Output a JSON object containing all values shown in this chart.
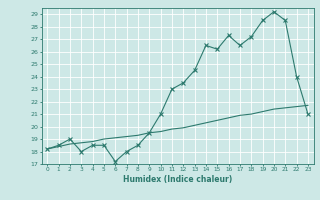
{
  "xlabel": "Humidex (Indice chaleur)",
  "xlim": [
    -0.5,
    23.5
  ],
  "ylim": [
    17,
    29.5
  ],
  "yticks": [
    17,
    18,
    19,
    20,
    21,
    22,
    23,
    24,
    25,
    26,
    27,
    28,
    29
  ],
  "xticks": [
    0,
    1,
    2,
    3,
    4,
    5,
    6,
    7,
    8,
    9,
    10,
    11,
    12,
    13,
    14,
    15,
    16,
    17,
    18,
    19,
    20,
    21,
    22,
    23
  ],
  "background_color": "#cde8e6",
  "line_color": "#2d7a6e",
  "line1_x": [
    0,
    1,
    2,
    3,
    4,
    5,
    6,
    7,
    8,
    9,
    10,
    11,
    12,
    13,
    14,
    15,
    16,
    17,
    18,
    19,
    20,
    21,
    22,
    23
  ],
  "line1_y": [
    18.2,
    18.5,
    19.0,
    18.0,
    18.5,
    18.5,
    17.2,
    18.0,
    18.5,
    19.5,
    21.0,
    23.0,
    23.5,
    24.5,
    26.5,
    26.2,
    27.3,
    26.5,
    27.2,
    28.5,
    29.2,
    28.5,
    24.0,
    21.0
  ],
  "line2_x": [
    0,
    1,
    2,
    3,
    4,
    5,
    6,
    7,
    8,
    9,
    10,
    11,
    12,
    13,
    14,
    15,
    16,
    17,
    18,
    19,
    20,
    21,
    22,
    23
  ],
  "line2_y": [
    18.2,
    18.4,
    18.6,
    18.7,
    18.8,
    19.0,
    19.1,
    19.2,
    19.3,
    19.5,
    19.6,
    19.8,
    19.9,
    20.1,
    20.3,
    20.5,
    20.7,
    20.9,
    21.0,
    21.2,
    21.4,
    21.5,
    21.6,
    21.7
  ]
}
